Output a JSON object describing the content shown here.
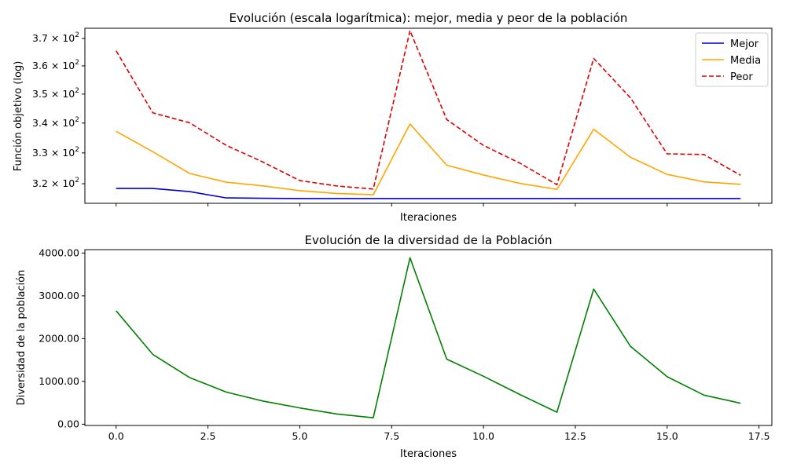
{
  "chart_data": [
    {
      "type": "line",
      "title": "Evolución (escala logarítmica): mejor, media y peor de la población",
      "xlabel": "Iteraciones",
      "ylabel": "Función objetivo (log)",
      "yscale": "log",
      "xlim": [
        -0.85,
        17.85
      ],
      "ylim": [
        313.8,
        373.8
      ],
      "yticks": [
        320,
        330,
        340,
        350,
        360,
        370
      ],
      "ytick_labels": [
        {
          "mantissa": "3.2",
          "exp": "2"
        },
        {
          "mantissa": "3.3",
          "exp": "2"
        },
        {
          "mantissa": "3.4",
          "exp": "2"
        },
        {
          "mantissa": "3.5",
          "exp": "2"
        },
        {
          "mantissa": "3.6",
          "exp": "2"
        },
        {
          "mantissa": "3.7",
          "exp": "2"
        }
      ],
      "xtick_values": [
        0,
        2.5,
        5,
        7.5,
        10,
        12.5,
        15,
        17.5
      ],
      "xtick_labels_visible": false,
      "legend": "top-right",
      "x": [
        0,
        1,
        2,
        3,
        4,
        5,
        6,
        7,
        8,
        9,
        10,
        11,
        12,
        13,
        14,
        15,
        16,
        17
      ],
      "series": [
        {
          "name": "Mejor",
          "color": "#0000cc",
          "dash": "solid",
          "values": [
            318.5,
            318.5,
            317.5,
            315.5,
            315.4,
            315.3,
            315.3,
            315.3,
            315.3,
            315.3,
            315.3,
            315.3,
            315.3,
            315.3,
            315.3,
            315.3,
            315.3,
            315.3
          ]
        },
        {
          "name": "Media",
          "color": "#ffa500",
          "dash": "solid",
          "values": [
            337.2,
            330.4,
            323.3,
            320.5,
            319.3,
            317.8,
            316.9,
            316.5,
            339.7,
            326.0,
            322.8,
            320.1,
            318.2,
            337.9,
            328.6,
            323.0,
            320.6,
            319.8
          ]
        },
        {
          "name": "Peor",
          "color": "#dd0000",
          "dash": "dashed",
          "values": [
            365.5,
            343.5,
            340.1,
            332.5,
            327.0,
            321.0,
            319.3,
            318.3,
            372.9,
            341.2,
            332.5,
            326.6,
            319.7,
            362.7,
            348.7,
            329.7,
            329.5,
            322.7
          ]
        }
      ]
    },
    {
      "type": "line",
      "title": "Evolución de la diversidad de la Población",
      "xlabel": "Iteraciones",
      "ylabel": "Diversidad de la población",
      "xlim": [
        -0.85,
        17.85
      ],
      "ylim": [
        -30,
        4080
      ],
      "yticks": [
        0,
        1000,
        2000,
        3000,
        4000
      ],
      "ytick_labels": [
        "0.00",
        "1000.00",
        "2000.00",
        "3000.00",
        "4000.00"
      ],
      "xticks": [
        0,
        2.5,
        5,
        7.5,
        10,
        12.5,
        15,
        17.5
      ],
      "xtick_labels": [
        "0.0",
        "2.5",
        "5.0",
        "7.5",
        "10.0",
        "12.5",
        "15.0",
        "17.5"
      ],
      "x": [
        0,
        1,
        2,
        3,
        4,
        5,
        6,
        7,
        8,
        9,
        10,
        11,
        12,
        13,
        14,
        15,
        16,
        17
      ],
      "series": [
        {
          "color": "#008000",
          "dash": "solid",
          "values": [
            2650,
            1630,
            1090,
            750,
            540,
            380,
            240,
            150,
            3890,
            1520,
            1120,
            690,
            280,
            3160,
            1820,
            1110,
            680,
            490
          ]
        }
      ]
    }
  ]
}
